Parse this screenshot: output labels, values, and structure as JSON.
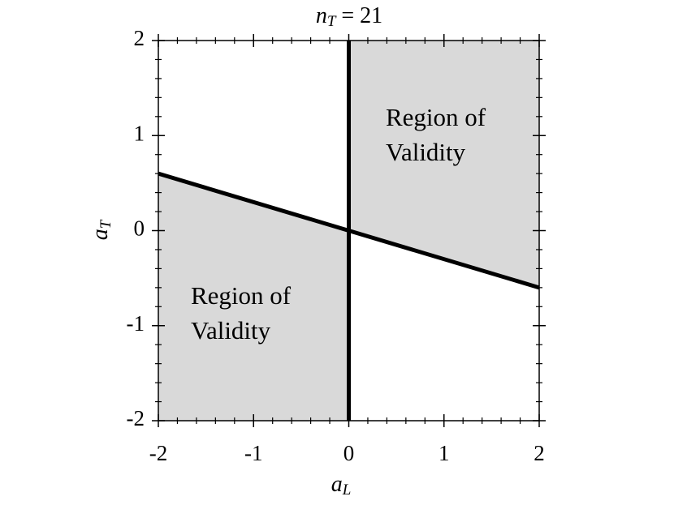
{
  "chart_data": {
    "type": "line",
    "title": {
      "symbol": "n",
      "subscript": "T",
      "text": " = 21"
    },
    "x_label": {
      "symbol": "a",
      "subscript": "L"
    },
    "y_label": {
      "symbol": "a",
      "subscript": "T"
    },
    "xlim": [
      -2,
      2
    ],
    "ylim": [
      -2,
      2
    ],
    "xticks": [
      -2,
      -1,
      0,
      1,
      2
    ],
    "yticks": [
      -2,
      -1,
      0,
      1,
      2
    ],
    "regions": [
      {
        "x": [
          0,
          0,
          2,
          2
        ],
        "y": [
          0,
          2,
          2,
          -0.6
        ],
        "color": "#d9d9d9"
      },
      {
        "x": [
          0,
          0,
          -2,
          -2
        ],
        "y": [
          0,
          -2,
          -2,
          0.6
        ],
        "color": "#d9d9d9"
      }
    ],
    "lines": [
      {
        "x": [
          -2,
          2
        ],
        "y": [
          0.6,
          -0.6
        ],
        "color": "#000000"
      },
      {
        "x": [
          0,
          0
        ],
        "y": [
          -2,
          2
        ],
        "color": "#000000"
      }
    ],
    "annotations": [
      [
        "Region of",
        "Validity"
      ],
      [
        "Region of",
        "Validity"
      ]
    ]
  }
}
